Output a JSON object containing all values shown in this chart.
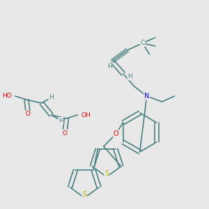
{
  "bg_color": "#e8e8e8",
  "bond_color": "#4a8080",
  "bond_width": 1.2,
  "atom_colors": {
    "N": "#0000ee",
    "O": "#ee0000",
    "S": "#b8b800",
    "C": "#4a8080",
    "H": "#4a8080"
  },
  "font_size": 6.5
}
